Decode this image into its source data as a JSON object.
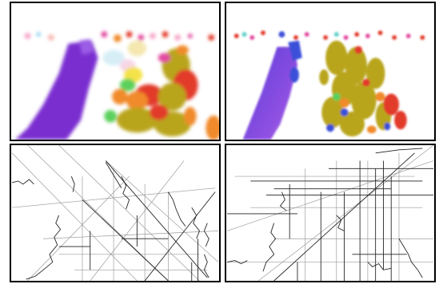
{
  "figure": {
    "panels": [
      {
        "id": "top-left",
        "kind": "color-segmentation"
      },
      {
        "id": "top-right",
        "kind": "color-segmentation"
      },
      {
        "id": "bottom-left",
        "kind": "edge-map"
      },
      {
        "id": "bottom-right",
        "kind": "edge-map"
      }
    ],
    "colors": {
      "purple": "#7a2fd0",
      "olive": "#b9a51a",
      "red": "#e23b2b",
      "orange": "#f08a2a",
      "magenta": "#e24aa0",
      "blue": "#3a50d8",
      "green": "#5bd05b",
      "line": "#222222",
      "line_light": "#9a9a9a"
    }
  }
}
